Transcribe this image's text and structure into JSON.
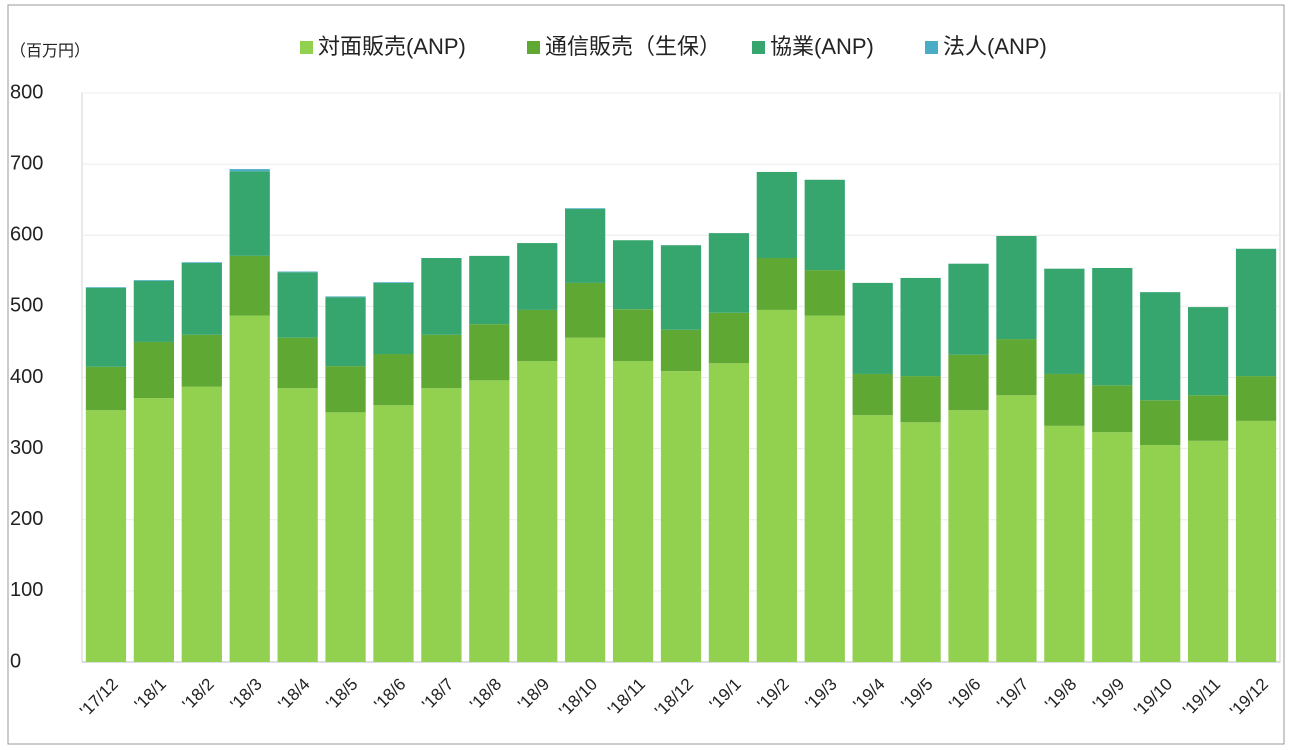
{
  "chart_data": {
    "type": "stacked_bar",
    "unit_label": "（百万円）",
    "categories": [
      "'17/12",
      "'18/1",
      "'18/2",
      "'18/3",
      "'18/4",
      "'18/5",
      "'18/6",
      "'18/7",
      "'18/8",
      "'18/9",
      "'18/10",
      "'18/11",
      "'18/12",
      "'19/1",
      "'19/2",
      "'19/3",
      "'19/4",
      "'19/5",
      "'19/6",
      "'19/7",
      "'19/8",
      "'19/9",
      "'19/10",
      "'19/11",
      "'19/12"
    ],
    "series": [
      {
        "name": "対面販売(ANP)",
        "color": "#92d050",
        "values": [
          354,
          371,
          387,
          487,
          385,
          351,
          361,
          385,
          396,
          423,
          456,
          423,
          409,
          420,
          495,
          487,
          347,
          337,
          354,
          375,
          332,
          323,
          305,
          311,
          339
        ]
      },
      {
        "name": "通信販売（生保）",
        "color": "#5fa834",
        "values": [
          61,
          79,
          73,
          84,
          71,
          65,
          72,
          75,
          79,
          72,
          77,
          73,
          58,
          71,
          73,
          64,
          58,
          65,
          78,
          79,
          73,
          66,
          63,
          64,
          63
        ]
      },
      {
        "name": "協業(ANP)",
        "color": "#37a66e",
        "values": [
          111,
          86,
          101,
          119,
          92,
          97,
          100,
          108,
          96,
          94,
          104,
          97,
          119,
          112,
          121,
          127,
          128,
          138,
          128,
          145,
          148,
          165,
          152,
          124,
          179
        ]
      },
      {
        "name": "法人(ANP)",
        "color": "#4bacc6",
        "values": [
          1,
          1,
          1,
          3,
          1,
          1,
          1,
          0,
          0,
          0,
          1,
          0,
          0,
          0,
          0,
          0,
          0,
          0,
          0,
          0,
          0,
          0,
          0,
          0,
          0
        ]
      }
    ],
    "ylim": [
      0,
      800
    ],
    "yticks": [
      0,
      100,
      200,
      300,
      400,
      500,
      600,
      700,
      800
    ],
    "grid": true
  }
}
